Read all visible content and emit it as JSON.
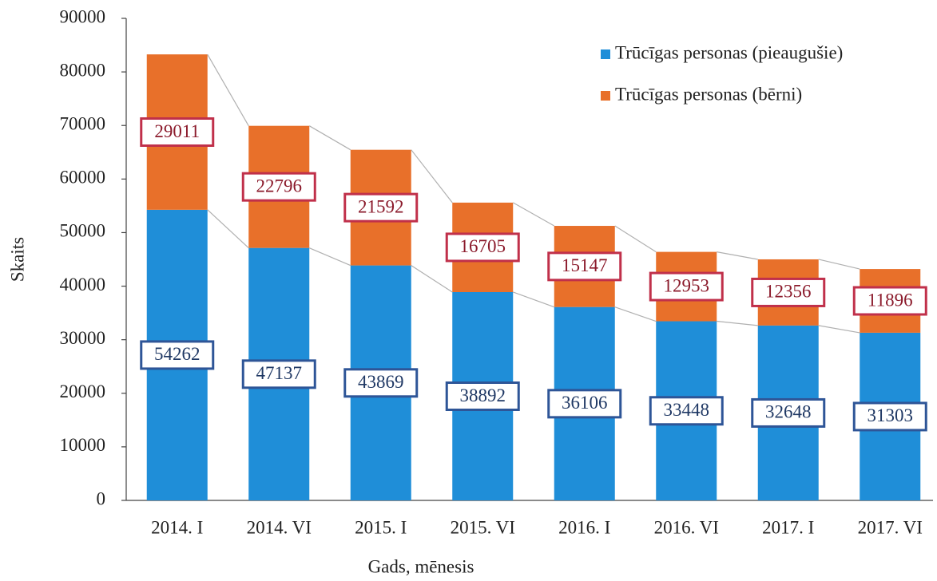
{
  "chart_data": {
    "type": "stacked_bar",
    "x_label": "Gads, mēnesis",
    "y_label": "Skaits",
    "categories": [
      "2014. I",
      "2014. VI",
      "2015. I",
      "2015. VI",
      "2016. I",
      "2016. VI",
      "2017. I",
      "2017. VI"
    ],
    "series": [
      {
        "name": "Trūcīgas personas (pieaugušie)",
        "color": "#1f8ed8",
        "values": [
          54262,
          47137,
          43869,
          38892,
          36106,
          33448,
          32648,
          31303
        ]
      },
      {
        "name": "Trūcīgas personas (bērni)",
        "color": "#e8702a",
        "values": [
          29011,
          22796,
          21592,
          16705,
          15147,
          12953,
          12356,
          11896
        ]
      }
    ],
    "ylim": [
      0,
      90000
    ],
    "yticks": [
      0,
      10000,
      20000,
      30000,
      40000,
      50000,
      60000,
      70000,
      80000,
      90000
    ],
    "legend": "upper right"
  }
}
